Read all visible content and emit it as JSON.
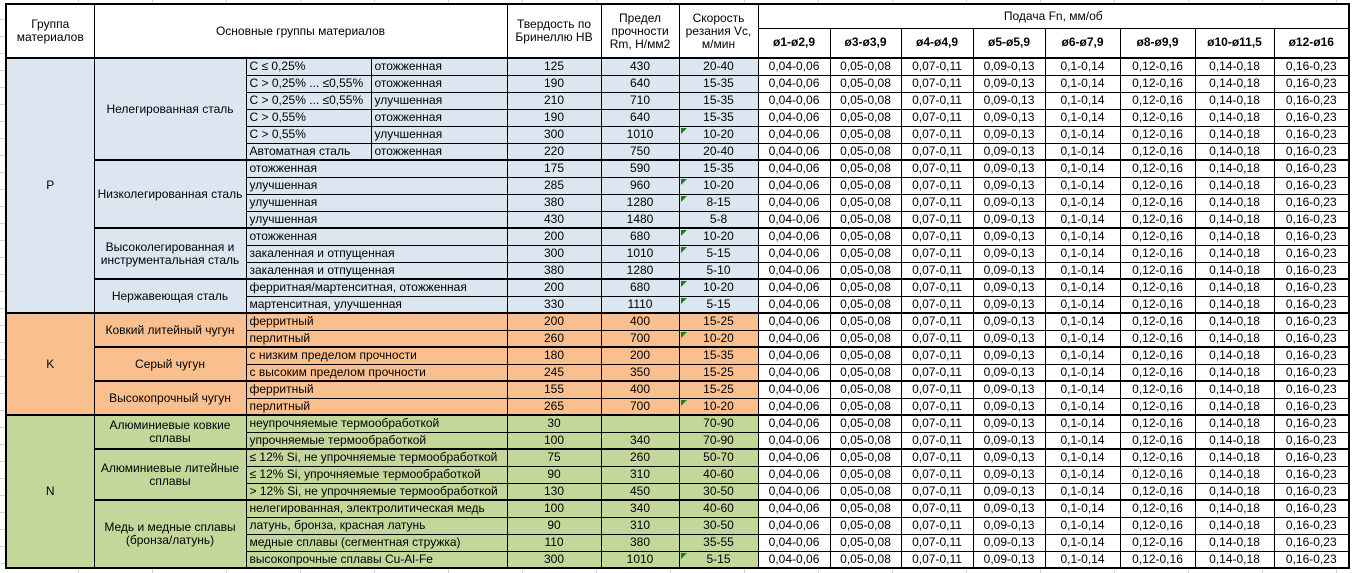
{
  "header": {
    "group": "Группа материалов",
    "main_groups": "Основные группы материалов",
    "hardness": "Твердость по Бринеллю HB",
    "strength": "Предел прочности Rm, Н/мм2",
    "speed": "Скорость резания Vc, м/мин",
    "feed_title": "Подача Fn, мм/об",
    "feed_columns": [
      "ø1-ø2,9",
      "ø3-ø3,9",
      "ø4-ø4,9",
      "ø5-ø5,9",
      "ø6-ø7,9",
      "ø8-ø9,9",
      "ø10-ø11,5",
      "ø12-ø16"
    ]
  },
  "feed_values": [
    "0,04-0,06",
    "0,05-0,08",
    "0,07-0,11",
    "0,09-0,13",
    "0,1-0,14",
    "0,12-0,16",
    "0,14-0,18",
    "0,16-0,23"
  ],
  "colors": {
    "p": "#DCE6F1",
    "k": "#FABF8F",
    "n": "#C4D79B",
    "marker": "#1E7E1E"
  },
  "groups": [
    {
      "label": "P",
      "subgroups": [
        {
          "name": "Нелегированная сталь",
          "rows": [
            {
              "comp": "C ≤ 0,25%",
              "state": "отожженная",
              "hb": "125",
              "rm": "430",
              "vc": "20-40"
            },
            {
              "comp": "C > 0,25% ... ≤0,55%",
              "state": "отожженная",
              "hb": "190",
              "rm": "640",
              "vc": "15-35"
            },
            {
              "comp": "C > 0,25% ... ≤0,55%",
              "state": "улучшенная",
              "hb": "210",
              "rm": "710",
              "vc": "15-35"
            },
            {
              "comp": "C > 0,55%",
              "state": "отожженная",
              "hb": "190",
              "rm": "640",
              "vc": "15-35"
            },
            {
              "comp": "C > 0,55%",
              "state": "улучшенная",
              "hb": "300",
              "rm": "1010",
              "vc": "10-20",
              "marker": true
            },
            {
              "comp": "Автоматная сталь",
              "state": "отожженная",
              "hb": "220",
              "rm": "750",
              "vc": "20-40"
            }
          ]
        },
        {
          "name": "Низколегированная сталь",
          "rows": [
            {
              "desc": "отожженная",
              "hb": "175",
              "rm": "590",
              "vc": "15-35"
            },
            {
              "desc": "улучшенная",
              "hb": "285",
              "rm": "960",
              "vc": "10-20",
              "marker": true
            },
            {
              "desc": "улучшенная",
              "hb": "380",
              "rm": "1280",
              "vc": "8-15",
              "marker": true
            },
            {
              "desc": "улучшенная",
              "hb": "430",
              "rm": "1480",
              "vc": "5-8"
            }
          ]
        },
        {
          "name": "Высоколегированная и инструментальная сталь",
          "rows": [
            {
              "desc": "отожженная",
              "hb": "200",
              "rm": "680",
              "vc": "10-20",
              "marker": true
            },
            {
              "desc": "закаленная и отпущенная",
              "hb": "300",
              "rm": "1010",
              "vc": "5-15",
              "marker": true
            },
            {
              "desc": "закаленная и отпущенная",
              "hb": "380",
              "rm": "1280",
              "vc": "5-10"
            }
          ]
        },
        {
          "name": "Нержавеющая сталь",
          "rows": [
            {
              "desc": "ферритная/мартенситная, отожженная",
              "hb": "200",
              "rm": "680",
              "vc": "10-20",
              "marker": true
            },
            {
              "desc": "мартенситная, улучшенная",
              "hb": "330",
              "rm": "1110",
              "vc": "5-15",
              "marker": true
            }
          ]
        }
      ]
    },
    {
      "label": "K",
      "subgroups": [
        {
          "name": "Ковкий литейный чугун",
          "rows": [
            {
              "desc": "ферритный",
              "hb": "200",
              "rm": "400",
              "vc": "15-25"
            },
            {
              "desc": "перлитный",
              "hb": "260",
              "rm": "700",
              "vc": "10-20",
              "marker": true
            }
          ]
        },
        {
          "name": "Серый чугун",
          "rows": [
            {
              "desc": "с низким пределом прочности",
              "hb": "180",
              "rm": "200",
              "vc": "15-35"
            },
            {
              "desc": "с высоким пределом прочности",
              "hb": "245",
              "rm": "350",
              "vc": "15-25"
            }
          ]
        },
        {
          "name": "Высокопрочный чугун",
          "rows": [
            {
              "desc": "ферритный",
              "hb": "155",
              "rm": "400",
              "vc": "15-25"
            },
            {
              "desc": "перлитный",
              "hb": "265",
              "rm": "700",
              "vc": "10-20",
              "marker": true
            }
          ]
        }
      ]
    },
    {
      "label": "N",
      "subgroups": [
        {
          "name": "Алюминиевые ковкие сплавы",
          "rows": [
            {
              "desc": "неупрочняемые термообработкой",
              "hb": "30",
              "rm": "",
              "vc": "70-90"
            },
            {
              "desc": "упрочняемые термообработкой",
              "hb": "100",
              "rm": "340",
              "vc": "70-90"
            }
          ]
        },
        {
          "name": "Алюминиевые литейные сплавы",
          "rows": [
            {
              "desc": "≤ 12% Si, не упрочняемые термообработкой",
              "hb": "75",
              "rm": "260",
              "vc": "50-70"
            },
            {
              "desc": "≤ 12% Si, упрочняемые термообработкой",
              "hb": "90",
              "rm": "310",
              "vc": "40-60"
            },
            {
              "desc": "> 12% Si, не упрочняемые термообработкой",
              "hb": "130",
              "rm": "450",
              "vc": "30-50"
            }
          ]
        },
        {
          "name": "Медь и медные сплавы (бронза/латунь)",
          "rows": [
            {
              "desc": "нелегированная, электролитическая медь",
              "hb": "100",
              "rm": "340",
              "vc": "40-60"
            },
            {
              "desc": "латунь, бронза, красная латунь",
              "hb": "90",
              "rm": "310",
              "vc": "30-50"
            },
            {
              "desc": "медные сплавы (сегментная стружка)",
              "hb": "110",
              "rm": "380",
              "vc": "35-55"
            },
            {
              "desc": "высокопрочные сплавы Cu-Al-Fe",
              "hb": "300",
              "rm": "1010",
              "vc": "5-15",
              "marker": true
            }
          ]
        }
      ]
    }
  ]
}
